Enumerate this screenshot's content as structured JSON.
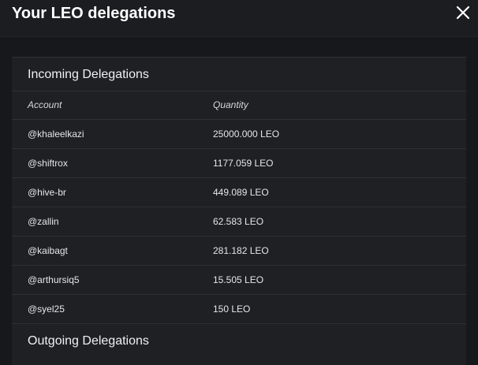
{
  "modal": {
    "title": "Your LEO delegations",
    "close_icon": "close-icon"
  },
  "incoming": {
    "title": "Incoming Delegations",
    "columns": {
      "account": "Account",
      "quantity": "Quantity"
    },
    "rows": [
      {
        "account": "@khaleelkazi",
        "quantity": "25000.000 LEO"
      },
      {
        "account": "@shiftrox",
        "quantity": "1177.059 LEO"
      },
      {
        "account": "@hive-br",
        "quantity": "449.089 LEO"
      },
      {
        "account": "@zallin",
        "quantity": "62.583 LEO"
      },
      {
        "account": "@kaibagt",
        "quantity": "281.182 LEO"
      },
      {
        "account": "@arthursiq5",
        "quantity": "15.505 LEO"
      },
      {
        "account": "@syel25",
        "quantity": "150 LEO"
      }
    ]
  },
  "outgoing": {
    "title": "Outgoing Delegations"
  },
  "colors": {
    "background": "#17181c",
    "panel": "#1f2024",
    "text": "#ffffff"
  }
}
